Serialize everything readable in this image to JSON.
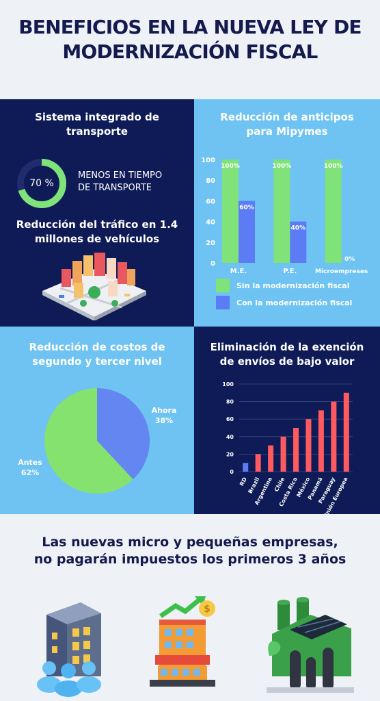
{
  "header": {
    "title_line1": "BENEFICIOS EN LA NUEVA LEY DE",
    "title_line2": "MODERNIZACIÓN FISCAL"
  },
  "transport": {
    "title_line1": "Sistema integrado de",
    "title_line2": "transporte",
    "ring_value": 70,
    "ring_label": "70 %",
    "ring_text_line1": "MENOS EN TIEMPO",
    "ring_text_line2": "DE TRANSPORTE",
    "traffic_line1": "Reducción del tráfico en 1.4",
    "traffic_line2": "millones de vehículos",
    "ring_color": "#7fe37a",
    "icon": "city-buildings-icon"
  },
  "bottom": {
    "line1": "Las nuevas micro y pequeñas empresas,",
    "line2": "no pagarán impuestos los primeros 3 años",
    "icons": [
      "office-building-people-icon",
      "growing-business-building-icon",
      "green-factory-icon"
    ]
  },
  "chart_data": [
    {
      "type": "bar",
      "title": "Reducción de anticipos para Mipymes",
      "categories": [
        "M.E.",
        "P.E.",
        "Microempresas"
      ],
      "series": [
        {
          "name": "Sin la modernización fiscal",
          "values": [
            100,
            100,
            100
          ],
          "labels": [
            "100%",
            "100%",
            "100%"
          ],
          "color": "#7fe37a"
        },
        {
          "name": "Con la modernización fiscal",
          "values": [
            60,
            40,
            0
          ],
          "labels": [
            "60%",
            "40%",
            "0%"
          ],
          "color": "#5b7cf5"
        }
      ],
      "yticks": [
        "0",
        "20",
        "40",
        "60",
        "80",
        "100"
      ],
      "ylim": [
        0,
        100
      ],
      "legend": "bottom"
    },
    {
      "type": "pie",
      "title": "Reducción de costos de segundo y tercer nivel",
      "slices": [
        {
          "label": "Ahora",
          "pct_label": "38%",
          "value": 38,
          "color": "#6486f1"
        },
        {
          "label": "Antes",
          "pct_label": "62%",
          "value": 62,
          "color": "#85e26e"
        }
      ]
    },
    {
      "type": "bar",
      "title": "Eliminación de la exención de envíos de bajo valor",
      "categories": [
        "RD",
        "Brazil",
        "Argentina",
        "Chile",
        "Costa Rica",
        "México",
        "Panamá",
        "Paraguay",
        "Unión Europea"
      ],
      "values": [
        10,
        20,
        30,
        40,
        50,
        60,
        70,
        80,
        90
      ],
      "colors": [
        "#5b7cf5",
        "#ff5a5f",
        "#ff5a5f",
        "#ff5a5f",
        "#ff5a5f",
        "#ff5a5f",
        "#ff5a5f",
        "#ff5a5f",
        "#ff5a5f"
      ],
      "yticks": [
        "0",
        "20",
        "40",
        "60",
        "80",
        "100"
      ],
      "ylim": [
        0,
        100
      ],
      "grid": true
    }
  ]
}
